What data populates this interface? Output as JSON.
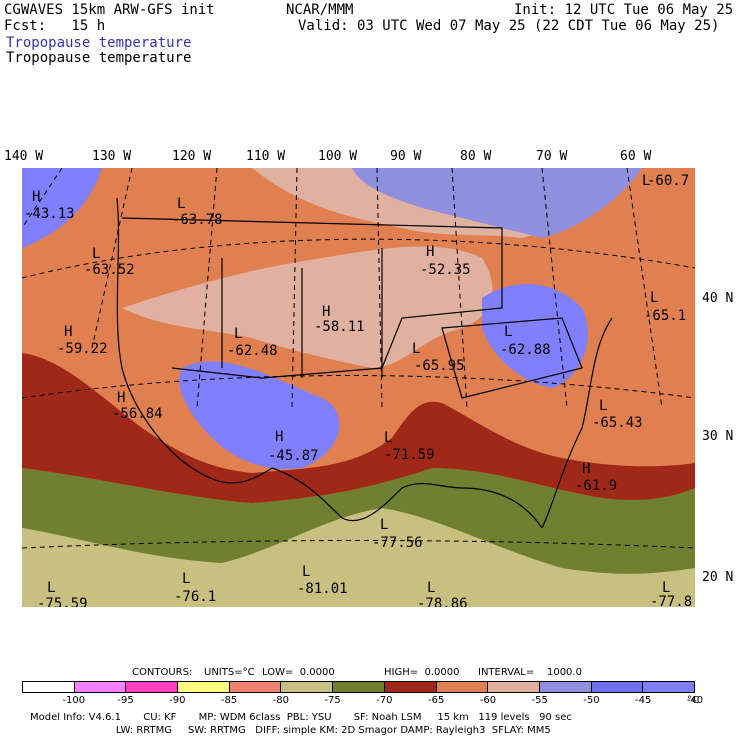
{
  "header": {
    "model": "CGWAVES 15km ARW-GFS init",
    "org": "NCAR/MMM",
    "init": "Init: 12 UTC Tue 06 May 25",
    "fcst": "Fcst:   15 h",
    "valid": "Valid: 03 UTC Wed 07 May 25 (22 CDT Tue 06 May 25)",
    "field_blue": "Tropopause temperature",
    "field_black": "Tropopause temperature"
  },
  "lon_labels": [
    "140 W",
    "130 W",
    "120 W",
    "110 W",
    "100 W",
    "90 W",
    "80 W",
    "70 W",
    "60 W"
  ],
  "lat_labels": [
    "40 N",
    "30 N",
    "20 N"
  ],
  "map_labels": [
    {
      "letter": "H",
      "value": "-43.13"
    },
    {
      "letter": "L",
      "value": "-63.78"
    },
    {
      "letter": "L",
      "value": "-63.52"
    },
    {
      "letter": "H",
      "value": "-52.35"
    },
    {
      "letter": "L",
      "value": "-60.7"
    },
    {
      "letter": "L",
      "value": "-65.1"
    },
    {
      "letter": "H",
      "value": "-58.11"
    },
    {
      "letter": "H",
      "value": "-59.22"
    },
    {
      "letter": "L",
      "value": "-62.48"
    },
    {
      "letter": "L",
      "value": "-62.88"
    },
    {
      "letter": "L",
      "value": "-65.95"
    },
    {
      "letter": "H",
      "value": "-56.84"
    },
    {
      "letter": "L",
      "value": "-65.43"
    },
    {
      "letter": "H",
      "value": "-45.87"
    },
    {
      "letter": "L",
      "value": "-71.59"
    },
    {
      "letter": "H",
      "value": "-61.9"
    },
    {
      "letter": "L",
      "value": "-77.56"
    },
    {
      "letter": "L",
      "value": "-81.01"
    },
    {
      "letter": "L",
      "value": "-75.59"
    },
    {
      "letter": "L",
      "value": "-76.1"
    },
    {
      "letter": "L",
      "value": "-78.86"
    },
    {
      "letter": "L",
      "value": "-77.8"
    }
  ],
  "contours": {
    "label": "CONTOURS:",
    "units": "UNITS=°C",
    "low": "LOW=  0.0000",
    "high": "HIGH=  0.0000",
    "interval": "INTERVAL=    1000.0"
  },
  "colorbar": {
    "colors": [
      "#ffffff",
      "#ff80ff",
      "#ff40c0",
      "#ffff80",
      "#f08070",
      "#c8c080",
      "#708030",
      "#a02818",
      "#e08050",
      "#e0b0a0",
      "#9090e0",
      "#7070f0",
      "#8080ff"
    ],
    "labels": [
      "-100",
      "-95",
      "-90",
      "-85",
      "-80",
      "-75",
      "-70",
      "-65",
      "-60",
      "-55",
      "-50",
      "-45",
      "-40"
    ],
    "unit": "°C"
  },
  "footer": {
    "line1": "Model Info: V4.6.1       CU: KF       MP: WDM 6class  PBL: YSU       SF: Noah LSM     15 km   119 levels   90 sec",
    "line2": "                           LW: RRTMG     SW: RRTMG   DIFF: simple KM: 2D Smagor DAMP: Rayleigh3  SFLAY: MM5"
  }
}
